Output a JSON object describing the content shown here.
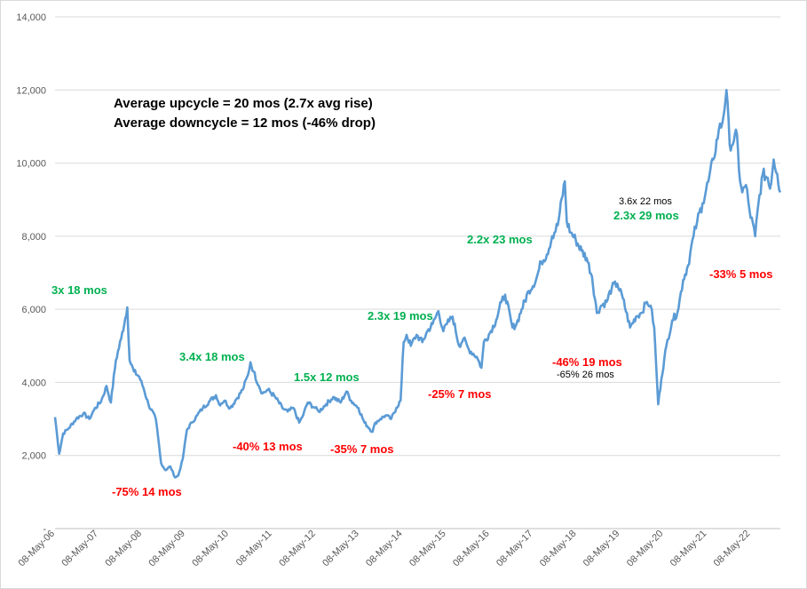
{
  "chart_data": {
    "type": "line",
    "title": "",
    "xlabel": "",
    "ylabel": "",
    "ylim": [
      0,
      14000
    ],
    "grid": "horizontal",
    "legend": "none",
    "y_ticks": [
      {
        "value": 0,
        "label": "-"
      },
      {
        "value": 2000,
        "label": "2,000"
      },
      {
        "value": 4000,
        "label": "4,000"
      },
      {
        "value": 6000,
        "label": "6,000"
      },
      {
        "value": 8000,
        "label": "8,000"
      },
      {
        "value": 10000,
        "label": "10,000"
      },
      {
        "value": 12000,
        "label": "12,000"
      },
      {
        "value": 14000,
        "label": "14,000"
      }
    ],
    "x_ticks": [
      "08-May-06",
      "08-May-07",
      "08-May-08",
      "08-May-09",
      "08-May-10",
      "08-May-11",
      "08-May-12",
      "08-May-13",
      "08-May-14",
      "08-May-15",
      "08-May-16",
      "08-May-17",
      "08-May-18",
      "08-May-19",
      "08-May-20",
      "08-May-21",
      "08-May-22"
    ],
    "x_range": [
      "2006-05-08",
      "2023-01-15"
    ],
    "series": [
      {
        "color": "#5b9bd5",
        "points": [
          [
            "2006-05-08",
            3050
          ],
          [
            "2006-06-12",
            2050
          ],
          [
            "2006-07-15",
            2600
          ],
          [
            "2006-09-01",
            2750
          ],
          [
            "2006-11-01",
            3000
          ],
          [
            "2007-01-01",
            3150
          ],
          [
            "2007-02-20",
            3000
          ],
          [
            "2007-04-01",
            3250
          ],
          [
            "2007-06-01",
            3500
          ],
          [
            "2007-07-15",
            3900
          ],
          [
            "2007-08-20",
            3450
          ],
          [
            "2007-10-01",
            4600
          ],
          [
            "2007-11-15",
            5200
          ],
          [
            "2008-01-05",
            6050
          ],
          [
            "2008-01-25",
            4600
          ],
          [
            "2008-03-01",
            4300
          ],
          [
            "2008-04-15",
            4150
          ],
          [
            "2008-05-20",
            3850
          ],
          [
            "2008-07-01",
            3400
          ],
          [
            "2008-09-01",
            3000
          ],
          [
            "2008-10-15",
            1800
          ],
          [
            "2008-11-20",
            1600
          ],
          [
            "2009-01-01",
            1700
          ],
          [
            "2009-02-10",
            1400
          ],
          [
            "2009-03-09",
            1450
          ],
          [
            "2009-04-15",
            1900
          ],
          [
            "2009-05-20",
            2700
          ],
          [
            "2009-07-01",
            2900
          ],
          [
            "2009-08-15",
            3100
          ],
          [
            "2009-10-01",
            3300
          ],
          [
            "2009-12-01",
            3500
          ],
          [
            "2010-01-20",
            3650
          ],
          [
            "2010-02-15",
            3400
          ],
          [
            "2010-04-01",
            3500
          ],
          [
            "2010-05-20",
            3300
          ],
          [
            "2010-07-01",
            3500
          ],
          [
            "2010-09-01",
            3800
          ],
          [
            "2010-10-15",
            4200
          ],
          [
            "2010-11-05",
            4550
          ],
          [
            "2010-12-01",
            4300
          ],
          [
            "2011-01-15",
            3900
          ],
          [
            "2011-02-15",
            3700
          ],
          [
            "2011-04-01",
            3800
          ],
          [
            "2011-06-01",
            3600
          ],
          [
            "2011-08-01",
            3300
          ],
          [
            "2011-09-15",
            3200
          ],
          [
            "2011-11-01",
            3300
          ],
          [
            "2011-12-20",
            2900
          ],
          [
            "2012-01-15",
            3050
          ],
          [
            "2012-03-01",
            3450
          ],
          [
            "2012-05-01",
            3300
          ],
          [
            "2012-06-01",
            3200
          ],
          [
            "2012-08-01",
            3400
          ],
          [
            "2012-10-01",
            3600
          ],
          [
            "2012-12-01",
            3450
          ],
          [
            "2013-01-20",
            3750
          ],
          [
            "2013-03-01",
            3500
          ],
          [
            "2013-05-01",
            3300
          ],
          [
            "2013-06-20",
            2900
          ],
          [
            "2013-08-28",
            2650
          ],
          [
            "2013-09-20",
            2900
          ],
          [
            "2013-11-01",
            3000
          ],
          [
            "2013-12-15",
            3100
          ],
          [
            "2014-02-01",
            3000
          ],
          [
            "2014-03-15",
            3300
          ],
          [
            "2014-04-20",
            3500
          ],
          [
            "2014-05-16",
            5100
          ],
          [
            "2014-06-10",
            5300
          ],
          [
            "2014-07-15",
            5000
          ],
          [
            "2014-09-01",
            5300
          ],
          [
            "2014-10-20",
            5100
          ],
          [
            "2014-12-01",
            5400
          ],
          [
            "2015-01-15",
            5600
          ],
          [
            "2015-03-04",
            5950
          ],
          [
            "2015-04-15",
            5400
          ],
          [
            "2015-05-15",
            5600
          ],
          [
            "2015-07-01",
            5800
          ],
          [
            "2015-08-25",
            5000
          ],
          [
            "2015-10-01",
            5200
          ],
          [
            "2015-11-15",
            4900
          ],
          [
            "2016-01-20",
            4700
          ],
          [
            "2016-02-29",
            4400
          ],
          [
            "2016-03-20",
            5100
          ],
          [
            "2016-05-01",
            5300
          ],
          [
            "2016-07-01",
            5700
          ],
          [
            "2016-08-15",
            6200
          ],
          [
            "2016-09-15",
            6400
          ],
          [
            "2016-11-15",
            5500
          ],
          [
            "2016-12-20",
            5600
          ],
          [
            "2017-02-01",
            6000
          ],
          [
            "2017-04-01",
            6500
          ],
          [
            "2017-06-01",
            6800
          ],
          [
            "2017-07-15",
            7300
          ],
          [
            "2017-09-01",
            7500
          ],
          [
            "2017-10-15",
            8000
          ],
          [
            "2017-12-01",
            8300
          ],
          [
            "2018-01-29",
            9500
          ],
          [
            "2018-02-15",
            8400
          ],
          [
            "2018-03-20",
            8100
          ],
          [
            "2018-05-01",
            7900
          ],
          [
            "2018-06-20",
            7600
          ],
          [
            "2018-08-01",
            7400
          ],
          [
            "2018-09-15",
            6900
          ],
          [
            "2018-10-26",
            5900
          ],
          [
            "2018-12-01",
            6100
          ],
          [
            "2019-01-15",
            6200
          ],
          [
            "2019-03-01",
            6600
          ],
          [
            "2019-04-15",
            6700
          ],
          [
            "2019-06-01",
            6300
          ],
          [
            "2019-08-01",
            5500
          ],
          [
            "2019-09-20",
            5800
          ],
          [
            "2019-11-01",
            5900
          ],
          [
            "2019-12-20",
            6200
          ],
          [
            "2020-01-20",
            6100
          ],
          [
            "2020-02-20",
            5500
          ],
          [
            "2020-03-24",
            3400
          ],
          [
            "2020-04-20",
            4100
          ],
          [
            "2020-06-01",
            5000
          ],
          [
            "2020-07-20",
            5700
          ],
          [
            "2020-09-01",
            5900
          ],
          [
            "2020-10-20",
            6800
          ],
          [
            "2020-11-30",
            7200
          ],
          [
            "2021-01-15",
            8000
          ],
          [
            "2021-02-15",
            8400
          ],
          [
            "2021-04-01",
            8900
          ],
          [
            "2021-05-20",
            9500
          ],
          [
            "2021-07-01",
            10100
          ],
          [
            "2021-08-15",
            10900
          ],
          [
            "2021-09-15",
            11100
          ],
          [
            "2021-10-19",
            12000
          ],
          [
            "2021-11-15",
            10500
          ],
          [
            "2021-12-20",
            10600
          ],
          [
            "2022-01-15",
            10800
          ],
          [
            "2022-02-01",
            9800
          ],
          [
            "2022-03-01",
            9200
          ],
          [
            "2022-04-01",
            9400
          ],
          [
            "2022-05-01",
            8700
          ],
          [
            "2022-06-17",
            8000
          ],
          [
            "2022-07-15",
            8900
          ],
          [
            "2022-08-20",
            9700
          ],
          [
            "2022-09-30",
            9600
          ],
          [
            "2022-10-20",
            9300
          ],
          [
            "2022-11-20",
            10100
          ],
          [
            "2022-12-20",
            9700
          ],
          [
            "2023-01-15",
            9200
          ]
        ]
      }
    ],
    "summary": [
      "Average upcycle = 20 mos (2.7x avg rise)",
      "Average downcycle = 12 mos (-46% drop)"
    ],
    "annotations": [
      {
        "text": "3x  18 mos",
        "color": "#00b050"
      },
      {
        "text": "-75%  14 mos",
        "color": "#ff0000"
      },
      {
        "text": "3.4x  18 mos",
        "color": "#00b050"
      },
      {
        "text": "-40%  13 mos",
        "color": "#ff0000"
      },
      {
        "text": "1.5x  12 mos",
        "color": "#00b050"
      },
      {
        "text": "-35%  7 mos",
        "color": "#ff0000"
      },
      {
        "text": "2.3x  19 mos",
        "color": "#00b050"
      },
      {
        "text": "-25%  7 mos",
        "color": "#ff0000"
      },
      {
        "text": "2.2x  23 mos",
        "color": "#00b050"
      },
      {
        "text": "-46%  19 mos",
        "color": "#ff0000"
      },
      {
        "text": "-65% 26 mos",
        "color": "#000000"
      },
      {
        "text": "3.6x 22 mos",
        "color": "#000000"
      },
      {
        "text": "2.3x  29 mos",
        "color": "#00b050"
      },
      {
        "text": "-33%  5 mos",
        "color": "#ff0000"
      }
    ]
  }
}
